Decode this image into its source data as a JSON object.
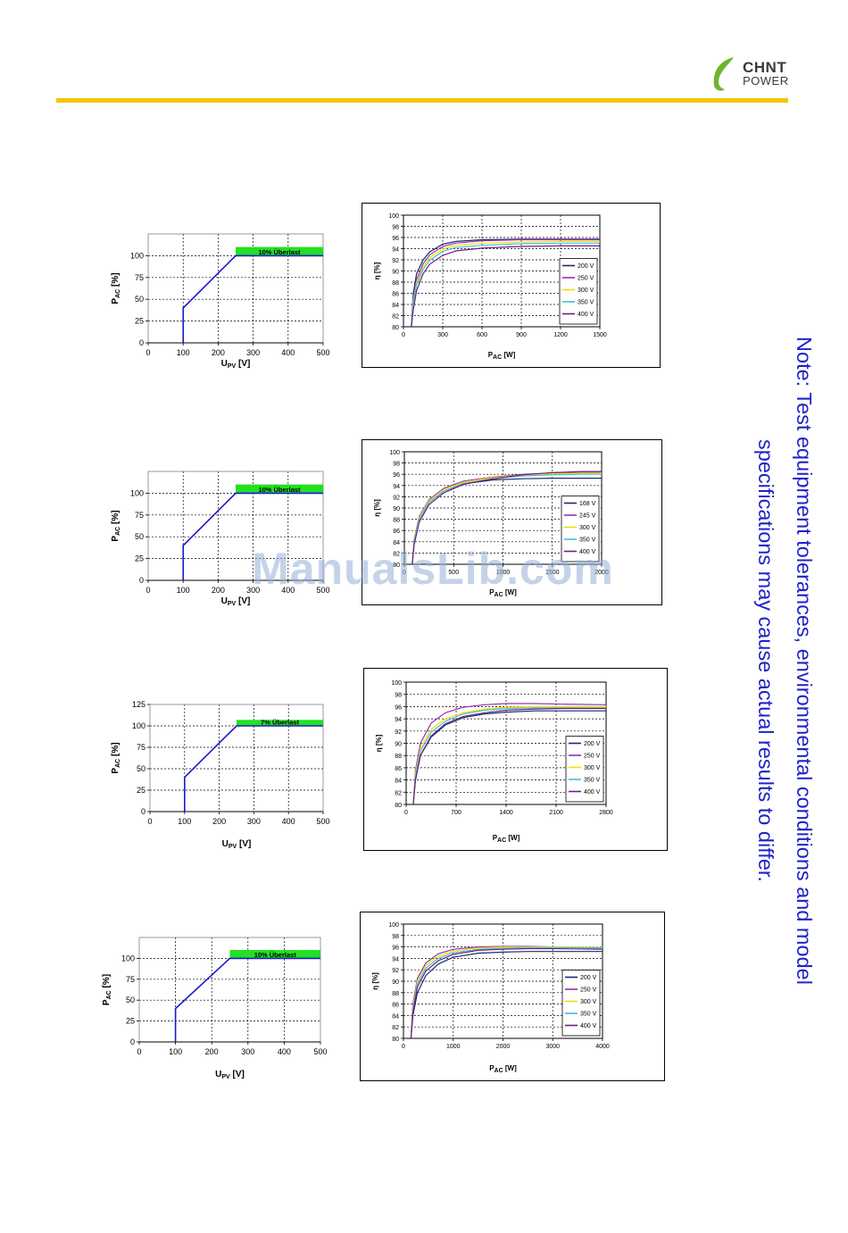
{
  "header": {
    "logo_line1": "CHNT",
    "logo_line2": "POWER",
    "accent_color": "#f5c400",
    "logo_color": "#6cb52d"
  },
  "side_note": {
    "text": "Note: Test equipment tolerances, environmental conditions and model specifications may cause actual results to differ.",
    "color": "#1f23c8"
  },
  "watermark": "ManualsLib.com",
  "chart_data": [
    {
      "type": "line",
      "xlabel": "U",
      "xlabel_sub": "PV",
      "xlabel_unit": " [V]",
      "ylabel": "P",
      "ylabel_sub": "AC",
      "ylabel_unit": " [%]",
      "xlim": [
        0,
        500
      ],
      "ylim": [
        0,
        125
      ],
      "xticks": [
        "0",
        "100",
        "200",
        "300",
        "400",
        "500"
      ],
      "yticks": [
        "0",
        "25",
        "50",
        "75",
        "100"
      ],
      "grid": true,
      "series": [
        {
          "x": [
            100,
            100,
            100,
            250,
            500
          ],
          "y": [
            0,
            40,
            40,
            100,
            100
          ],
          "color": "#1a1acc"
        }
      ],
      "band_label": "10% Überlast",
      "band_range": [
        100,
        110
      ],
      "band_x": [
        250,
        500
      ],
      "band_color": "#22e022"
    },
    {
      "type": "line",
      "xlabel": "P",
      "xlabel_sub": "AC",
      "xlabel_unit": " [W]",
      "ylabel": "η [%]",
      "xlim": [
        0,
        1500
      ],
      "ylim": [
        80,
        100
      ],
      "xticks": [
        "0",
        "300",
        "600",
        "900",
        "1200",
        "1500"
      ],
      "yticks": [
        "80",
        "82",
        "84",
        "86",
        "88",
        "90",
        "92",
        "94",
        "96",
        "98",
        "100"
      ],
      "grid": true,
      "legend": "bottom-right",
      "series": [
        {
          "name": "200 V",
          "color": "#1c2a6e",
          "x": [
            60,
            75,
            100,
            150,
            200,
            300,
            400,
            600,
            900,
            1200,
            1500
          ],
          "y": [
            80,
            86,
            89.5,
            92,
            93.4,
            94.8,
            95.3,
            95.6,
            95.7,
            95.7,
            95.7
          ]
        },
        {
          "name": "250 V",
          "color": "#9b2fae",
          "x": [
            60,
            75,
            100,
            150,
            200,
            300,
            400,
            600,
            900,
            1200,
            1500
          ],
          "y": [
            80,
            85,
            88.5,
            91.3,
            92.9,
            94.4,
            95.0,
            95.4,
            95.6,
            95.6,
            95.6
          ]
        },
        {
          "name": "300 V",
          "color": "#f0e000",
          "x": [
            60,
            75,
            100,
            150,
            200,
            300,
            400,
            600,
            900,
            1200,
            1500
          ],
          "y": [
            80,
            84.5,
            88,
            90.8,
            92.4,
            93.9,
            94.6,
            95.0,
            95.2,
            95.3,
            95.3
          ]
        },
        {
          "name": "350 V",
          "color": "#3fbfe0",
          "x": [
            60,
            75,
            100,
            150,
            200,
            300,
            400,
            600,
            900,
            1200,
            1500
          ],
          "y": [
            80,
            84,
            87.5,
            90.3,
            91.9,
            93.5,
            94.2,
            94.6,
            94.9,
            95.0,
            95.0
          ]
        },
        {
          "name": "400 V",
          "color": "#6b1f80",
          "x": [
            60,
            75,
            100,
            150,
            200,
            300,
            400,
            600,
            900,
            1200,
            1500
          ],
          "y": [
            80,
            83,
            86.5,
            89.5,
            91.2,
            92.8,
            93.6,
            94.1,
            94.4,
            94.5,
            94.5
          ]
        }
      ]
    },
    {
      "type": "line",
      "xlabel": "U",
      "xlabel_sub": "PV",
      "xlabel_unit": " [V]",
      "ylabel": "P",
      "ylabel_sub": "AC",
      "ylabel_unit": " [%]",
      "xlim": [
        0,
        500
      ],
      "ylim": [
        0,
        125
      ],
      "xticks": [
        "0",
        "100",
        "200",
        "300",
        "400",
        "500"
      ],
      "yticks": [
        "0",
        "25",
        "50",
        "75",
        "100"
      ],
      "grid": true,
      "series": [
        {
          "x": [
            100,
            100,
            100,
            250,
            500
          ],
          "y": [
            0,
            40,
            40,
            100,
            100
          ],
          "color": "#1a1acc"
        }
      ],
      "band_label": "10% Überlast",
      "band_range": [
        100,
        110
      ],
      "band_x": [
        250,
        500
      ],
      "band_color": "#22e022"
    },
    {
      "type": "line",
      "xlabel": "P",
      "xlabel_sub": "AC",
      "xlabel_unit": " [W]",
      "ylabel": "η [%]",
      "xlim": [
        0,
        2000
      ],
      "ylim": [
        80,
        100
      ],
      "xticks": [
        "0",
        "500",
        "1000",
        "1500",
        "2000"
      ],
      "yticks": [
        "80",
        "82",
        "84",
        "86",
        "88",
        "90",
        "92",
        "94",
        "96",
        "98",
        "100"
      ],
      "grid": true,
      "legend": "bottom-right",
      "series": [
        {
          "name": "168 V",
          "color": "#1c2a6e",
          "x": [
            80,
            100,
            150,
            250,
            400,
            600,
            900,
            1200,
            1500,
            1800,
            2000
          ],
          "y": [
            80,
            84,
            88,
            91,
            93,
            94.3,
            95.0,
            95.2,
            95.3,
            95.3,
            95.3
          ]
        },
        {
          "name": "245 V",
          "color": "#9b2fae",
          "x": [
            80,
            100,
            150,
            250,
            400,
            600,
            900,
            1200,
            1500,
            1800,
            2000
          ],
          "y": [
            80,
            84.5,
            88.5,
            91.5,
            93.5,
            94.8,
            95.5,
            96.0,
            96.2,
            96.3,
            96.3
          ]
        },
        {
          "name": "300 V",
          "color": "#f0e000",
          "x": [
            80,
            100,
            150,
            250,
            400,
            600,
            900,
            1200,
            1500,
            1800,
            2000
          ],
          "y": [
            80,
            84.3,
            88.3,
            91.3,
            93.3,
            94.6,
            95.4,
            95.9,
            96.1,
            96.2,
            96.2
          ]
        },
        {
          "name": "350 V",
          "color": "#3fbfe0",
          "x": [
            80,
            100,
            150,
            250,
            400,
            600,
            900,
            1200,
            1500,
            1800,
            2000
          ],
          "y": [
            80,
            84,
            88,
            91,
            93,
            94.4,
            95.2,
            95.7,
            95.9,
            96.0,
            96.0
          ]
        },
        {
          "name": "400 V",
          "color": "#6b1f80",
          "x": [
            80,
            100,
            150,
            250,
            400,
            600,
            900,
            1200,
            1500,
            1800,
            2000
          ],
          "y": [
            80,
            83.5,
            87.5,
            90.6,
            92.7,
            94.2,
            95.2,
            95.9,
            96.3,
            96.5,
            96.5
          ]
        }
      ]
    },
    {
      "type": "line",
      "xlabel": "U",
      "xlabel_sub": "PV",
      "xlabel_unit": " [V]",
      "ylabel": "P",
      "ylabel_sub": "AC",
      "ylabel_unit": " [%]",
      "xlim": [
        0,
        500
      ],
      "ylim": [
        0,
        125
      ],
      "xticks": [
        "0",
        "100",
        "200",
        "300",
        "400",
        "500"
      ],
      "yticks": [
        "0",
        "25",
        "50",
        "75",
        "100",
        "125"
      ],
      "grid": true,
      "series": [
        {
          "x": [
            100,
            100,
            100,
            250,
            500
          ],
          "y": [
            0,
            40,
            40,
            100,
            100
          ],
          "color": "#1a1acc"
        }
      ],
      "band_label": "7% Überlast",
      "band_range": [
        100,
        107
      ],
      "band_x": [
        250,
        500
      ],
      "band_color": "#22e022"
    },
    {
      "type": "line",
      "xlabel": "P",
      "xlabel_sub": "AC",
      "xlabel_unit": " [W]",
      "ylabel": "η [%]",
      "xlim": [
        0,
        2800
      ],
      "ylim": [
        80,
        100
      ],
      "xticks": [
        "0",
        "700",
        "1400",
        "2100",
        "2800"
      ],
      "yticks": [
        "80",
        "82",
        "84",
        "86",
        "88",
        "90",
        "92",
        "94",
        "96",
        "98",
        "100"
      ],
      "grid": true,
      "legend": "bottom-right",
      "series": [
        {
          "name": "200 V",
          "color": "#1c2a6e",
          "x": [
            100,
            130,
            200,
            350,
            550,
            800,
            1100,
            1400,
            1800,
            2200,
            2800
          ],
          "y": [
            80,
            84,
            88,
            91,
            93,
            94.2,
            94.8,
            95.1,
            95.3,
            95.3,
            95.3
          ]
        },
        {
          "name": "250 V",
          "color": "#9b2fae",
          "x": [
            100,
            130,
            200,
            350,
            550,
            800,
            1100,
            1400,
            1800,
            2200,
            2800
          ],
          "y": [
            80,
            85.5,
            90,
            93.3,
            95.0,
            95.9,
            96.3,
            96.5,
            96.5,
            96.4,
            96.3
          ]
        },
        {
          "name": "300 V",
          "color": "#f0e000",
          "x": [
            100,
            130,
            200,
            350,
            550,
            800,
            1100,
            1400,
            1800,
            2200,
            2800
          ],
          "y": [
            80,
            85,
            89.2,
            92.3,
            94.0,
            95.0,
            95.6,
            95.9,
            96.0,
            96.0,
            96.0
          ]
        },
        {
          "name": "350 V",
          "color": "#3fbfe0",
          "x": [
            100,
            130,
            200,
            350,
            550,
            800,
            1100,
            1400,
            1800,
            2200,
            2800
          ],
          "y": [
            80,
            84.5,
            88.7,
            91.8,
            93.6,
            94.8,
            95.4,
            95.7,
            95.8,
            95.8,
            95.8
          ]
        },
        {
          "name": "400 V",
          "color": "#6b1f80",
          "x": [
            100,
            130,
            200,
            350,
            550,
            800,
            1100,
            1400,
            1800,
            2200,
            2800
          ],
          "y": [
            80,
            84,
            88,
            91.2,
            93.2,
            94.4,
            95.0,
            95.4,
            95.6,
            95.7,
            95.7
          ]
        }
      ]
    },
    {
      "type": "line",
      "xlabel": "U",
      "xlabel_sub": "PV",
      "xlabel_unit": " [V]",
      "ylabel": "P",
      "ylabel_sub": "AC",
      "ylabel_unit": " [%]",
      "xlim": [
        0,
        500
      ],
      "ylim": [
        0,
        125
      ],
      "xticks": [
        "0",
        "100",
        "200",
        "300",
        "400",
        "500"
      ],
      "yticks": [
        "0",
        "25",
        "50",
        "75",
        "100"
      ],
      "grid": true,
      "series": [
        {
          "x": [
            100,
            100,
            100,
            250,
            500
          ],
          "y": [
            0,
            40,
            40,
            100,
            100
          ],
          "color": "#1a1acc"
        }
      ],
      "band_label": "10% Überlast",
      "band_range": [
        100,
        110
      ],
      "band_x": [
        250,
        500
      ],
      "band_color": "#22e022"
    },
    {
      "type": "line",
      "xlabel": "P",
      "xlabel_sub": "AC",
      "xlabel_unit": " [W]",
      "ylabel": "η [%]",
      "xlim": [
        0,
        4000
      ],
      "ylim": [
        80,
        100
      ],
      "xticks": [
        "0",
        "1000",
        "2000",
        "3000",
        "4000"
      ],
      "yticks": [
        "80",
        "82",
        "84",
        "86",
        "88",
        "90",
        "92",
        "94",
        "96",
        "98",
        "100"
      ],
      "grid": true,
      "legend": "bottom-right",
      "series": [
        {
          "name": "200 V",
          "color": "#1c2a6e",
          "x": [
            150,
            190,
            280,
            450,
            700,
            1000,
            1500,
            2000,
            2500,
            3000,
            4000
          ],
          "y": [
            80,
            84,
            88,
            91,
            93,
            94.2,
            94.9,
            95.1,
            95.2,
            95.2,
            95.2
          ]
        },
        {
          "name": "250 V",
          "color": "#9b2fae",
          "x": [
            150,
            190,
            280,
            450,
            700,
            1000,
            1500,
            2000,
            2500,
            3000,
            4000
          ],
          "y": [
            80,
            86,
            90.5,
            93.2,
            94.8,
            95.6,
            96.0,
            96.1,
            96.1,
            96.0,
            95.8
          ]
        },
        {
          "name": "300 V",
          "color": "#f0e000",
          "x": [
            150,
            190,
            280,
            450,
            700,
            1000,
            1500,
            2000,
            2500,
            3000,
            4000
          ],
          "y": [
            80,
            85.5,
            90,
            92.8,
            94.4,
            95.3,
            95.8,
            96.0,
            96.0,
            96.0,
            95.9
          ]
        },
        {
          "name": "350 V",
          "color": "#3fbfe0",
          "x": [
            150,
            190,
            280,
            450,
            700,
            1000,
            1500,
            2000,
            2500,
            3000,
            4000
          ],
          "y": [
            80,
            85,
            89.5,
            92.3,
            94.0,
            95.0,
            95.6,
            95.8,
            95.9,
            95.9,
            95.8
          ]
        },
        {
          "name": "400 V",
          "color": "#6b1f80",
          "x": [
            150,
            190,
            280,
            450,
            700,
            1000,
            1500,
            2000,
            2500,
            3000,
            4000
          ],
          "y": [
            80,
            84.5,
            89,
            91.8,
            93.6,
            94.7,
            95.4,
            95.6,
            95.7,
            95.7,
            95.6
          ]
        }
      ]
    }
  ]
}
